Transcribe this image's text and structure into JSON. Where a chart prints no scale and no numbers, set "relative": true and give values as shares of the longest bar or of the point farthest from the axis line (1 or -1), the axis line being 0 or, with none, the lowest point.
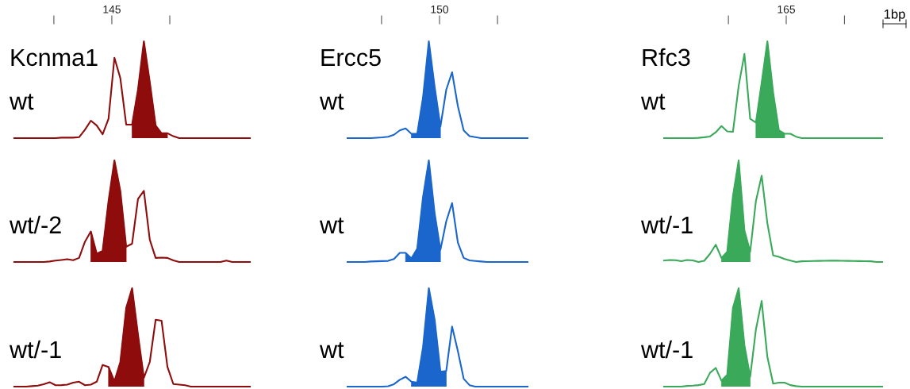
{
  "chart_data": [
    {
      "type": "line",
      "title": "Kcnma1",
      "ylabel": "wt",
      "relative": true,
      "annotations": [
        "145"
      ],
      "categories": [
        null,
        null,
        null,
        null,
        null,
        null,
        null,
        null,
        null,
        null,
        null,
        null,
        null,
        null,
        null,
        null,
        null,
        null,
        null,
        null,
        null,
        null,
        null,
        null,
        null,
        null,
        null,
        null,
        null,
        null,
        null,
        null,
        null,
        null,
        null,
        null,
        null,
        null,
        null,
        null,
        null
      ],
      "series": [
        {
          "color": "#8e0c0c",
          "values": [
            0,
            0,
            0,
            0,
            0,
            0,
            0,
            0,
            0.005,
            0.005,
            0.005,
            0.01,
            0.087,
            0.18,
            0.13,
            0.04,
            0.2,
            0.83,
            0.62,
            0.14,
            0.14,
            0.5,
            1.0,
            0.58,
            0.13,
            0.05,
            0.05,
            0.02,
            0,
            0,
            0,
            0,
            0,
            0,
            0,
            0,
            0,
            0,
            0,
            0,
            0
          ]
        },
        {
          "type": "area",
          "color": "#8e0c0c",
          "values": [
            null,
            null,
            null,
            null,
            null,
            null,
            null,
            null,
            null,
            null,
            null,
            null,
            null,
            null,
            null,
            null,
            null,
            null,
            null,
            null,
            0.14,
            0.5,
            1.0,
            0.58,
            0.13,
            0.05,
            0.05,
            null,
            null,
            null,
            null,
            null,
            null,
            null,
            null,
            null,
            null,
            null,
            null,
            null,
            null
          ]
        }
      ]
    },
    {
      "type": "line",
      "title": "Ercc5",
      "ylabel": "wt",
      "relative": true,
      "annotations": [
        "150"
      ],
      "categories": [
        null,
        null,
        null,
        null,
        null,
        null,
        null,
        null,
        null,
        null,
        null,
        null,
        null,
        null,
        null,
        null,
        null,
        null,
        null,
        null,
        null,
        null,
        null,
        null,
        null,
        null,
        null,
        null,
        null,
        null,
        null,
        null
      ],
      "series": [
        {
          "color": "#1a66cc",
          "values": [
            0,
            0,
            0,
            0,
            0,
            0.004,
            0.008,
            0.014,
            0.035,
            0.08,
            0.1,
            0.045,
            0.044,
            0.42,
            1.0,
            0.53,
            0.12,
            0.5,
            0.68,
            0.33,
            0.08,
            0.02,
            0.01,
            0,
            0,
            0,
            0,
            0,
            0,
            0,
            0,
            0
          ]
        },
        {
          "type": "area",
          "color": "#1a66cc",
          "values": [
            null,
            null,
            null,
            null,
            null,
            null,
            null,
            null,
            null,
            null,
            null,
            0.045,
            0.044,
            0.42,
            1.0,
            0.53,
            0.12,
            null,
            null,
            null,
            null,
            null,
            null,
            null,
            null,
            null,
            null,
            null,
            null,
            null,
            null,
            null
          ]
        }
      ]
    },
    {
      "type": "line",
      "title": "Rfc3",
      "ylabel": "wt",
      "relative": true,
      "annotations": [
        "165",
        "1bp"
      ],
      "categories": [
        null,
        null,
        null,
        null,
        null,
        null,
        null,
        null,
        null,
        null,
        null,
        null,
        null,
        null,
        null,
        null,
        null,
        null,
        null,
        null,
        null,
        null,
        null,
        null,
        null,
        null,
        null,
        null,
        null,
        null,
        null,
        null,
        null,
        null,
        null,
        null,
        null,
        null,
        null
      ],
      "series": [
        {
          "color": "#3aa95a",
          "values": [
            0,
            0,
            0,
            0,
            0,
            0,
            0.003,
            0.009,
            0.017,
            0.06,
            0.125,
            0.07,
            0.065,
            0.54,
            0.87,
            0.2,
            0.16,
            0.57,
            1.0,
            0.47,
            0.08,
            0.045,
            0.045,
            0.015,
            0,
            0,
            0,
            0,
            0,
            0,
            0,
            0,
            0,
            0,
            0,
            0,
            0,
            0,
            0
          ]
        },
        {
          "type": "area",
          "color": "#3aa95a",
          "values": [
            null,
            null,
            null,
            null,
            null,
            null,
            null,
            null,
            null,
            null,
            null,
            null,
            null,
            null,
            null,
            null,
            0.16,
            0.57,
            1.0,
            0.47,
            0.08,
            0.045,
            null,
            null,
            null,
            null,
            null,
            null,
            null,
            null,
            null,
            null,
            null,
            null,
            null,
            null,
            null,
            null,
            null
          ]
        }
      ]
    },
    {
      "type": "line",
      "ylabel": "wt/-2",
      "relative": true,
      "categories": [
        null,
        null,
        null,
        null,
        null,
        null,
        null,
        null,
        null,
        null,
        null,
        null,
        null,
        null,
        null,
        null,
        null,
        null,
        null,
        null,
        null,
        null,
        null,
        null,
        null,
        null,
        null,
        null,
        null,
        null,
        null,
        null,
        null,
        null,
        null,
        null,
        null,
        null,
        null,
        null,
        null
      ],
      "series": [
        {
          "color": "#8e0c0c",
          "values": [
            0,
            0,
            0,
            0,
            0,
            0,
            0.005,
            0.013,
            0.02,
            0.028,
            0.018,
            0.04,
            0.2,
            0.3,
            0.08,
            0.11,
            0.6,
            1.0,
            0.7,
            0.15,
            0.18,
            0.62,
            0.7,
            0.22,
            0.04,
            0.043,
            0.04,
            0.015,
            0,
            0,
            0,
            0,
            0,
            0,
            0,
            0,
            0.013,
            0,
            0,
            0,
            0
          ]
        },
        {
          "type": "area",
          "color": "#8e0c0c",
          "values": [
            null,
            null,
            null,
            null,
            null,
            null,
            null,
            null,
            null,
            null,
            null,
            null,
            null,
            0.3,
            0.08,
            0.11,
            0.6,
            1.0,
            0.7,
            0.15,
            null,
            null,
            null,
            null,
            null,
            null,
            null,
            null,
            null,
            null,
            null,
            null,
            null,
            null,
            null,
            null,
            null,
            null,
            null,
            null,
            null
          ]
        }
      ]
    },
    {
      "type": "line",
      "ylabel": "wt",
      "relative": true,
      "categories": [
        null,
        null,
        null,
        null,
        null,
        null,
        null,
        null,
        null,
        null,
        null,
        null,
        null,
        null,
        null,
        null,
        null,
        null,
        null,
        null,
        null,
        null,
        null,
        null,
        null,
        null,
        null,
        null,
        null,
        null,
        null,
        null
      ],
      "series": [
        {
          "color": "#1a66cc",
          "values": [
            0,
            0,
            0,
            0,
            0.005,
            0.007,
            0.009,
            0.011,
            0.03,
            0.09,
            0.09,
            0.035,
            0.13,
            0.64,
            1.0,
            0.48,
            0.12,
            0.4,
            0.58,
            0.19,
            0.04,
            0.016,
            0.01,
            0.005,
            0,
            0,
            0,
            0,
            0,
            0,
            0,
            0
          ]
        },
        {
          "type": "area",
          "color": "#1a66cc",
          "values": [
            null,
            null,
            null,
            null,
            null,
            null,
            null,
            null,
            null,
            null,
            0.09,
            0.035,
            0.13,
            0.64,
            1.0,
            0.48,
            0.12,
            null,
            null,
            null,
            null,
            null,
            null,
            null,
            null,
            null,
            null,
            null,
            null,
            null,
            null,
            null
          ]
        }
      ]
    },
    {
      "type": "line",
      "ylabel": "wt/-1",
      "relative": true,
      "categories": [
        null,
        null,
        null,
        null,
        null,
        null,
        null,
        null,
        null,
        null,
        null,
        null,
        null,
        null,
        null,
        null,
        null,
        null,
        null,
        null,
        null,
        null,
        null,
        null,
        null,
        null,
        null,
        null,
        null,
        null,
        null,
        null,
        null,
        null,
        null,
        null,
        null,
        null,
        null
      ],
      "series": [
        {
          "color": "#3aa95a",
          "values": [
            0.014,
            0.02,
            0.018,
            0.008,
            0.02,
            0.015,
            0,
            0.012,
            0.08,
            0.17,
            0.04,
            0.1,
            0.65,
            1.0,
            0.31,
            0.1,
            0.6,
            0.85,
            0.38,
            0.065,
            0.05,
            0.03,
            0.014,
            0,
            0.007,
            0.008,
            0.01,
            0.011,
            0.012,
            0.013,
            0.014,
            0.012,
            0.011,
            0.01,
            0.009,
            0.008,
            0.007,
            0,
            0
          ]
        },
        {
          "type": "area",
          "color": "#3aa95a",
          "values": [
            null,
            null,
            null,
            null,
            null,
            null,
            null,
            null,
            null,
            null,
            0.04,
            0.1,
            0.65,
            1.0,
            0.31,
            0.1,
            null,
            null,
            null,
            null,
            null,
            null,
            null,
            null,
            null,
            null,
            null,
            null,
            null,
            null,
            null,
            null,
            null,
            null,
            null,
            null,
            null,
            null,
            null
          ]
        }
      ]
    },
    {
      "type": "line",
      "ylabel": "wt/-1",
      "relative": true,
      "categories": [
        null,
        null,
        null,
        null,
        null,
        null,
        null,
        null,
        null,
        null,
        null,
        null,
        null,
        null,
        null,
        null,
        null,
        null,
        null,
        null,
        null,
        null,
        null,
        null,
        null,
        null,
        null,
        null,
        null,
        null,
        null,
        null,
        null,
        null,
        null,
        null,
        null,
        null,
        null,
        null,
        null
      ],
      "series": [
        {
          "color": "#8e0c0c",
          "values": [
            0,
            0,
            0,
            0.005,
            0.01,
            0.025,
            0.045,
            0.014,
            0.015,
            0.02,
            0.04,
            0.05,
            0.014,
            0.02,
            0.05,
            0.22,
            0.2,
            0.054,
            0.25,
            0.8,
            1.0,
            0.53,
            0.09,
            0.25,
            0.68,
            0.67,
            0.2,
            0.026,
            0.02,
            0.014,
            0,
            0,
            0,
            0,
            0,
            0,
            0,
            0,
            0,
            0,
            0
          ]
        },
        {
          "type": "area",
          "color": "#8e0c0c",
          "values": [
            null,
            null,
            null,
            null,
            null,
            null,
            null,
            null,
            null,
            null,
            null,
            null,
            null,
            null,
            null,
            null,
            0.2,
            0.054,
            0.25,
            0.8,
            1.0,
            0.53,
            0.09,
            null,
            null,
            null,
            null,
            null,
            null,
            null,
            null,
            null,
            null,
            null,
            null,
            null,
            null,
            null,
            null,
            null,
            null
          ]
        }
      ]
    },
    {
      "type": "line",
      "ylabel": "wt",
      "relative": true,
      "categories": [
        null,
        null,
        null,
        null,
        null,
        null,
        null,
        null,
        null,
        null,
        null,
        null,
        null,
        null,
        null,
        null,
        null,
        null,
        null,
        null,
        null,
        null,
        null,
        null,
        null,
        null,
        null,
        null,
        null,
        null,
        null,
        null
      ],
      "series": [
        {
          "color": "#1a66cc",
          "values": [
            0,
            0,
            0,
            0,
            0,
            0,
            0,
            0.004,
            0.025,
            0.07,
            0.1,
            0.05,
            0.04,
            0.4,
            1.0,
            0.68,
            0.15,
            0.16,
            0.61,
            0.36,
            0.08,
            0.015,
            0,
            0,
            0,
            0,
            0,
            0,
            0,
            0,
            0,
            0
          ]
        },
        {
          "type": "area",
          "color": "#1a66cc",
          "values": [
            null,
            null,
            null,
            null,
            null,
            null,
            null,
            null,
            null,
            null,
            null,
            0.05,
            0.04,
            0.4,
            1.0,
            0.68,
            0.15,
            0.16,
            null,
            null,
            null,
            null,
            null,
            null,
            null,
            null,
            null,
            null,
            null,
            null,
            null,
            null
          ]
        }
      ]
    },
    {
      "type": "line",
      "ylabel": "wt/-1",
      "relative": true,
      "categories": [
        null,
        null,
        null,
        null,
        null,
        null,
        null,
        null,
        null,
        null,
        null,
        null,
        null,
        null,
        null,
        null,
        null,
        null,
        null,
        null,
        null,
        null,
        null,
        null,
        null,
        null,
        null,
        null,
        null,
        null,
        null,
        null,
        null,
        null,
        null,
        null,
        null,
        null,
        null
      ],
      "series": [
        {
          "color": "#3aa95a",
          "values": [
            0,
            0,
            0,
            0,
            0.007,
            0.01,
            0.015,
            0.026,
            0.14,
            0.19,
            0.06,
            0.12,
            0.8,
            1.0,
            0.42,
            0.1,
            0.58,
            0.87,
            0.3,
            0.03,
            0.04,
            0.04,
            0.015,
            0.005,
            0,
            0,
            0,
            0,
            0,
            0,
            0,
            0,
            0,
            0,
            0,
            0,
            0,
            0,
            0
          ]
        },
        {
          "type": "area",
          "color": "#3aa95a",
          "values": [
            null,
            null,
            null,
            null,
            null,
            null,
            null,
            null,
            null,
            null,
            0.06,
            0.12,
            0.8,
            1.0,
            0.42,
            0.1,
            null,
            null,
            null,
            null,
            null,
            null,
            null,
            null,
            null,
            null,
            null,
            null,
            null,
            null,
            null,
            null,
            null,
            null,
            null,
            null,
            null,
            null,
            null
          ]
        }
      ]
    }
  ]
}
